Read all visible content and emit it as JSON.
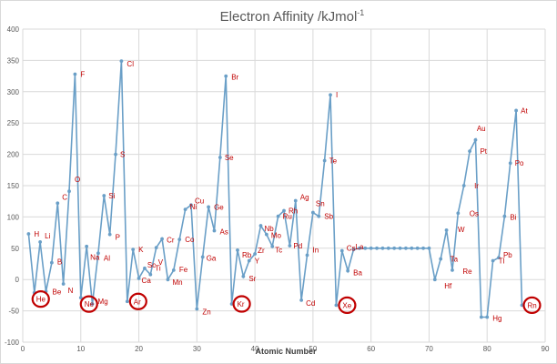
{
  "chart_data": {
    "type": "line",
    "title": "Electron Affinity /kJmol",
    "title_superscript": "-1",
    "xlabel": "Atomic Number",
    "ylabel": "",
    "xlim": [
      0,
      90
    ],
    "ylim": [
      -100,
      400
    ],
    "xticks": [
      0,
      10,
      20,
      30,
      40,
      50,
      60,
      70,
      80,
      90
    ],
    "yticks": [
      -100,
      -50,
      0,
      50,
      100,
      150,
      200,
      250,
      300,
      350,
      400
    ],
    "grid": true,
    "legend": "none",
    "colors": {
      "series": "#6a9fc7",
      "label": "#c00000",
      "circle": "#c00000",
      "grid": "#d9d9d9"
    },
    "series": [
      {
        "x": [
          1,
          2,
          3,
          4,
          5,
          6,
          7,
          8,
          9,
          10,
          11,
          12,
          13,
          14,
          15,
          16,
          17,
          18,
          19,
          20,
          21,
          22,
          23,
          24,
          25,
          26,
          27,
          28,
          29,
          30,
          31,
          32,
          33,
          34,
          35,
          36,
          37,
          38,
          39,
          40,
          41,
          42,
          43,
          44,
          45,
          46,
          47,
          48,
          49,
          50,
          51,
          52,
          53,
          54,
          55,
          56,
          57,
          58,
          59,
          60,
          61,
          62,
          63,
          64,
          65,
          66,
          67,
          68,
          69,
          70,
          71,
          72,
          73,
          74,
          75,
          76,
          77,
          78,
          79,
          80,
          81,
          82,
          83,
          84,
          85,
          86
        ],
        "y": [
          73,
          -21,
          60,
          -19,
          27,
          122,
          -7,
          141,
          328,
          -29,
          53,
          -39,
          42,
          134,
          72,
          200,
          349,
          -35,
          48,
          2,
          18,
          8,
          51,
          65,
          0,
          15,
          64,
          112,
          119,
          -47,
          36,
          116,
          78,
          195,
          325,
          -39,
          47,
          5,
          30,
          41,
          86,
          72,
          53,
          101,
          110,
          54,
          126,
          -33,
          39,
          107,
          101,
          190,
          295,
          -41,
          46,
          14,
          48,
          50,
          50,
          50,
          50,
          50,
          50,
          50,
          50,
          50,
          50,
          50,
          50,
          50,
          0,
          33,
          79,
          15,
          106,
          150,
          205,
          223,
          -60,
          -60,
          30,
          35,
          101,
          186,
          270,
          -41
        ]
      }
    ],
    "point_labels": [
      {
        "text": "H",
        "x": 1,
        "y": 73,
        "dx": 6,
        "dy": 3
      },
      {
        "text": "He",
        "x": 2,
        "y": -21,
        "dx": 2,
        "dy": 10
      },
      {
        "text": "Li",
        "x": 3,
        "y": 60,
        "dx": 5,
        "dy": -4
      },
      {
        "text": "Be",
        "x": 4,
        "y": -19,
        "dx": 7,
        "dy": 3
      },
      {
        "text": "B",
        "x": 5,
        "y": 27,
        "dx": 6,
        "dy": 2
      },
      {
        "text": "C",
        "x": 6,
        "y": 122,
        "dx": 5,
        "dy": -4
      },
      {
        "text": "N",
        "x": 7,
        "y": -7,
        "dx": 5,
        "dy": 10
      },
      {
        "text": "O",
        "x": 8,
        "y": 141,
        "dx": 6,
        "dy": -10
      },
      {
        "text": "F",
        "x": 9,
        "y": 328,
        "dx": 6,
        "dy": 3
      },
      {
        "text": "Ne",
        "x": 10,
        "y": -29,
        "dx": 4,
        "dy": 10
      },
      {
        "text": "Na",
        "x": 11,
        "y": 53,
        "dx": 4,
        "dy": 15
      },
      {
        "text": "Mg",
        "x": 12,
        "y": -39,
        "dx": 6,
        "dy": 0
      },
      {
        "text": "Al",
        "x": 13,
        "y": 42,
        "dx": 6,
        "dy": 8
      },
      {
        "text": "Si",
        "x": 14,
        "y": 134,
        "dx": 5,
        "dy": 3
      },
      {
        "text": "P",
        "x": 15,
        "y": 72,
        "dx": 6,
        "dy": 6
      },
      {
        "text": "S",
        "x": 16,
        "y": 200,
        "dx": 5,
        "dy": 3
      },
      {
        "text": "Cl",
        "x": 17,
        "y": 349,
        "dx": 6,
        "dy": 6
      },
      {
        "text": "Ar",
        "x": 18,
        "y": -35,
        "dx": 7,
        "dy": 3
      },
      {
        "text": "K",
        "x": 19,
        "y": 48,
        "dx": 6,
        "dy": 3
      },
      {
        "text": "Ca",
        "x": 20,
        "y": 2,
        "dx": 3,
        "dy": 5
      },
      {
        "text": "Sc",
        "x": 21,
        "y": 18,
        "dx": 3,
        "dy": -1
      },
      {
        "text": "Ti",
        "x": 22,
        "y": 8,
        "dx": 5,
        "dy": -4
      },
      {
        "text": "V",
        "x": 23,
        "y": 51,
        "dx": 2,
        "dy": 19
      },
      {
        "text": "Cr",
        "x": 24,
        "y": 65,
        "dx": 5,
        "dy": 4
      },
      {
        "text": "Mn",
        "x": 25,
        "y": 0,
        "dx": 5,
        "dy": 6
      },
      {
        "text": "Fe",
        "x": 26,
        "y": 15,
        "dx": 6,
        "dy": 2
      },
      {
        "text": "Co",
        "x": 27,
        "y": 64,
        "dx": 6,
        "dy": 3
      },
      {
        "text": "Ni",
        "x": 28,
        "y": 112,
        "dx": 5,
        "dy": 0
      },
      {
        "text": "Cu",
        "x": 29,
        "y": 119,
        "dx": 4,
        "dy": -2
      },
      {
        "text": "Zn",
        "x": 30,
        "y": -47,
        "dx": 6,
        "dy": 6
      },
      {
        "text": "Ga",
        "x": 31,
        "y": 36,
        "dx": 4,
        "dy": 4
      },
      {
        "text": "Ge",
        "x": 32,
        "y": 116,
        "dx": 6,
        "dy": 3
      },
      {
        "text": "As",
        "x": 33,
        "y": 78,
        "dx": 6,
        "dy": 4
      },
      {
        "text": "Se",
        "x": 34,
        "y": 195,
        "dx": 5,
        "dy": 3
      },
      {
        "text": "Br",
        "x": 35,
        "y": 325,
        "dx": 6,
        "dy": 4
      },
      {
        "text": "Kr",
        "x": 36,
        "y": -39,
        "dx": 6,
        "dy": 3
      },
      {
        "text": "Rb",
        "x": 37,
        "y": 47,
        "dx": 5,
        "dy": 8
      },
      {
        "text": "Sr",
        "x": 38,
        "y": 5,
        "dx": 6,
        "dy": 5
      },
      {
        "text": "Y",
        "x": 39,
        "y": 30,
        "dx": 6,
        "dy": 3
      },
      {
        "text": "Zr",
        "x": 40,
        "y": 41,
        "dx": 3,
        "dy": -1
      },
      {
        "text": "Nb",
        "x": 41,
        "y": 86,
        "dx": 4,
        "dy": 6
      },
      {
        "text": "Mo",
        "x": 42,
        "y": 72,
        "dx": 5,
        "dy": 4
      },
      {
        "text": "Tc",
        "x": 43,
        "y": 53,
        "dx": 3,
        "dy": 7
      },
      {
        "text": "Ru",
        "x": 44,
        "y": 101,
        "dx": 5,
        "dy": 3
      },
      {
        "text": "Rh",
        "x": 45,
        "y": 110,
        "dx": 5,
        "dy": 3
      },
      {
        "text": "Pd",
        "x": 46,
        "y": 54,
        "dx": 4,
        "dy": 3
      },
      {
        "text": "Ag",
        "x": 47,
        "y": 126,
        "dx": 5,
        "dy": -1
      },
      {
        "text": "Cd",
        "x": 48,
        "y": -33,
        "dx": 5,
        "dy": 6
      },
      {
        "text": "In",
        "x": 49,
        "y": 39,
        "dx": 6,
        "dy": -3
      },
      {
        "text": "Sn",
        "x": 50,
        "y": 107,
        "dx": 3,
        "dy": -7
      },
      {
        "text": "Sb",
        "x": 51,
        "y": 101,
        "dx": 6,
        "dy": 3
      },
      {
        "text": "Te",
        "x": 52,
        "y": 190,
        "dx": 5,
        "dy": 3
      },
      {
        "text": "I",
        "x": 53,
        "y": 295,
        "dx": 6,
        "dy": 3
      },
      {
        "text": "Xe",
        "x": 54,
        "y": -41,
        "dx": 7,
        "dy": 3
      },
      {
        "text": "Cs",
        "x": 55,
        "y": 46,
        "dx": 5,
        "dy": 0
      },
      {
        "text": "Ba",
        "x": 56,
        "y": 14,
        "dx": 6,
        "dy": 5
      },
      {
        "text": "La",
        "x": 57,
        "y": 48,
        "dx": 2,
        "dy": 0
      },
      {
        "text": "Hf",
        "x": 72,
        "y": 0,
        "dx": 4,
        "dy": 10
      },
      {
        "text": "Ta",
        "x": 73,
        "y": 33,
        "dx": 4,
        "dy": 3
      },
      {
        "text": "W",
        "x": 74,
        "y": 79,
        "dx": 6,
        "dy": 2
      },
      {
        "text": "Re",
        "x": 75,
        "y": 15,
        "dx": 5,
        "dy": 4
      },
      {
        "text": "Os",
        "x": 76,
        "y": 106,
        "dx": 6,
        "dy": 3
      },
      {
        "text": "Ir",
        "x": 77,
        "y": 150,
        "dx": 5,
        "dy": 3
      },
      {
        "text": "Pt",
        "x": 78,
        "y": 205,
        "dx": 5,
        "dy": 3
      },
      {
        "text": "Au",
        "x": 79,
        "y": 223,
        "dx": -5,
        "dy": -10
      },
      {
        "text": "Hg",
        "x": 80,
        "y": -60,
        "dx": 6,
        "dy": 4
      },
      {
        "text": "Tl",
        "x": 81,
        "y": 30,
        "dx": 6,
        "dy": 3
      },
      {
        "text": "Pb",
        "x": 82,
        "y": 35,
        "dx": 5,
        "dy": 0
      },
      {
        "text": "Bi",
        "x": 83,
        "y": 101,
        "dx": 6,
        "dy": 4
      },
      {
        "text": "Po",
        "x": 84,
        "y": 186,
        "dx": 5,
        "dy": 3
      },
      {
        "text": "At",
        "x": 85,
        "y": 270,
        "dx": 5,
        "dy": 3
      },
      {
        "text": "Rn",
        "x": 86,
        "y": -41,
        "dx": 6,
        "dy": 3
      }
    ],
    "circled_elements": [
      "He",
      "Ne",
      "Ar",
      "Kr",
      "Xe",
      "Rn"
    ]
  }
}
